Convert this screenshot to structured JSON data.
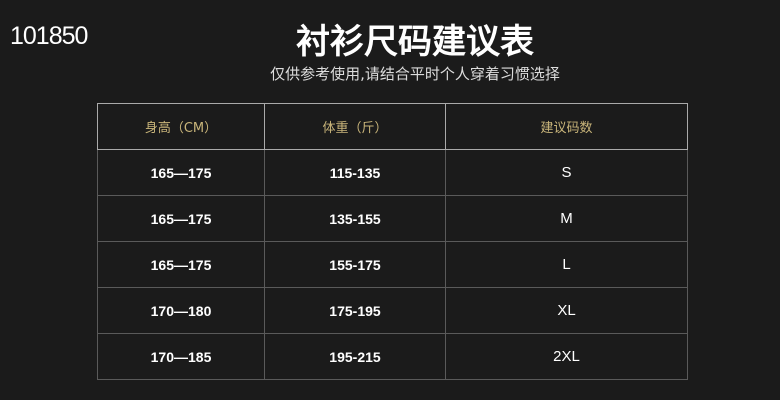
{
  "watermark": "101850",
  "title": "衬衫尺码建议表",
  "subtitle": "仅供参考使用,请结合平时个人穿着习惯选择",
  "table": {
    "headers": [
      "身高（CM）",
      "体重（斤）",
      "建议码数"
    ],
    "rows": [
      [
        "165—175",
        "115-135",
        "S"
      ],
      [
        "165—175",
        "135-155",
        "M"
      ],
      [
        "165—175",
        "155-175",
        "L"
      ],
      [
        "170—180",
        "175-195",
        "XL"
      ],
      [
        "170—185",
        "195-215",
        "2XL"
      ]
    ]
  }
}
